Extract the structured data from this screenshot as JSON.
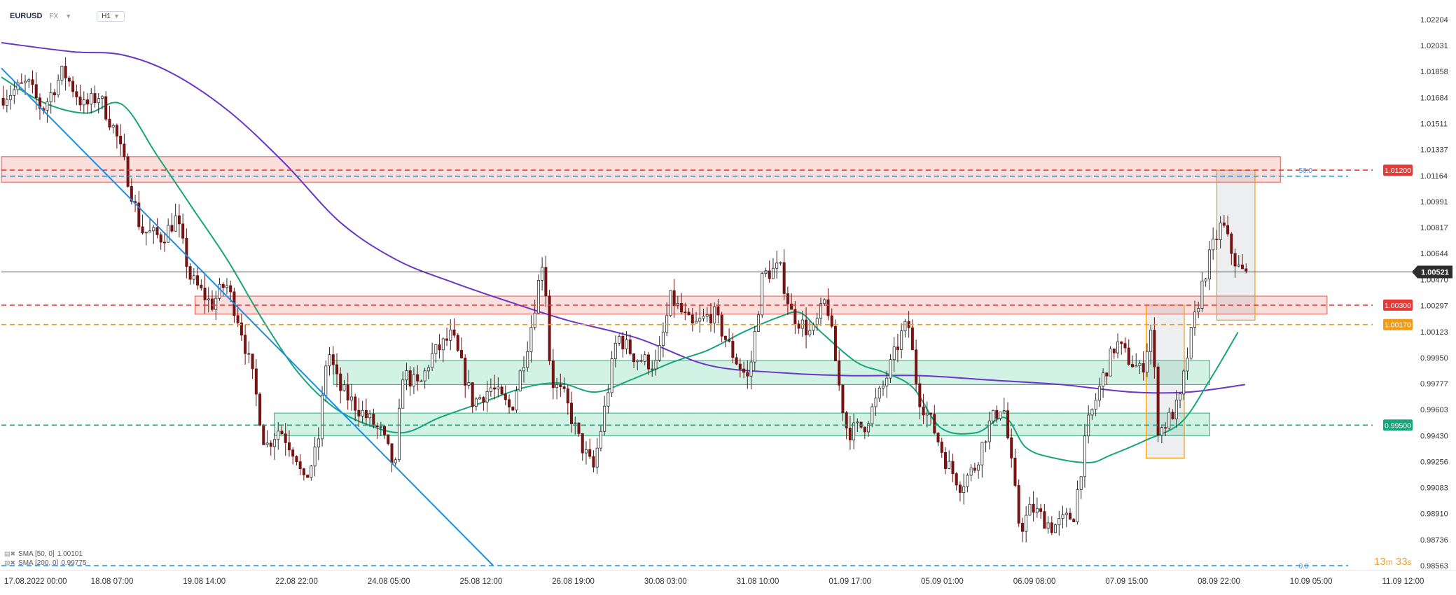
{
  "header": {
    "symbol": "EURUSD",
    "exchange": "FX",
    "timeframe": "H1"
  },
  "indicators": [
    {
      "label": "SMA [50, 0]",
      "value": "1.00101",
      "color": "#16a57a"
    },
    {
      "label": "SMA [200, 0]",
      "value": "0.99775",
      "color": "#6a35c8"
    }
  ],
  "countdown": {
    "minutes": "13",
    "seconds": "33",
    "m": "m",
    "s": "s"
  },
  "chart_data": {
    "type": "candlestick",
    "symbol": "EURUSD",
    "interval": "H1",
    "ylim": [
      0.98563,
      1.02204
    ],
    "y_ticks": [
      "1.02204",
      "1.02031",
      "1.01858",
      "1.01684",
      "1.01511",
      "1.01337",
      "1.01164",
      "1.00991",
      "1.00817",
      "1.00644",
      "1.00470",
      "1.00297",
      "1.00123",
      "0.99950",
      "0.99777",
      "0.99603",
      "0.99430",
      "0.99256",
      "0.99083",
      "0.98910",
      "0.98736",
      "0.98563"
    ],
    "x_ticks": [
      "17.08.2022  00:00",
      "18.08  07:00",
      "19.08  14:00",
      "22.08  22:00",
      "24.08  05:00",
      "25.08  12:00",
      "26.08  19:00",
      "30.08  03:00",
      "31.08  10:00",
      "01.09  17:00",
      "05.09  01:00",
      "06.09  08:00",
      "07.09  15:00",
      "08.09  22:00",
      "10.09  05:00",
      "11.09  12:00"
    ],
    "x_tick_fraction": [
      0.0,
      0.06525,
      0.13053,
      0.19579,
      0.26106,
      0.32632,
      0.39158,
      0.45684,
      0.5221,
      0.58737,
      0.65263,
      0.71789,
      0.78316,
      0.84842,
      0.91368,
      0.97895
    ],
    "candle_path": [
      [
        0.0,
        1.0168
      ],
      [
        0.02,
        1.0178
      ],
      [
        0.03,
        1.016
      ],
      [
        0.045,
        1.0186
      ],
      [
        0.06,
        1.0162
      ],
      [
        0.07,
        1.017
      ],
      [
        0.082,
        1.0145
      ],
      [
        0.09,
        1.0118
      ],
      [
        0.1,
        1.008
      ],
      [
        0.115,
        1.0075
      ],
      [
        0.125,
        1.0088
      ],
      [
        0.135,
        1.0048
      ],
      [
        0.15,
        1.003
      ],
      [
        0.16,
        1.0045
      ],
      [
        0.17,
        1.0018
      ],
      [
        0.18,
        0.9978
      ],
      [
        0.188,
        0.9935
      ],
      [
        0.198,
        0.9948
      ],
      [
        0.21,
        0.993
      ],
      [
        0.215,
        0.991
      ],
      [
        0.225,
        0.9935
      ],
      [
        0.232,
        1.0002
      ],
      [
        0.24,
        0.9975
      ],
      [
        0.255,
        0.996
      ],
      [
        0.27,
        0.9945
      ],
      [
        0.28,
        0.992
      ],
      [
        0.285,
        0.9985
      ],
      [
        0.297,
        0.9975
      ],
      [
        0.305,
        0.9995
      ],
      [
        0.32,
        1.001
      ],
      [
        0.335,
        0.9965
      ],
      [
        0.348,
        0.9975
      ],
      [
        0.362,
        0.996
      ],
      [
        0.375,
        1.001
      ],
      [
        0.385,
        1.0065
      ],
      [
        0.39,
        0.998
      ],
      [
        0.4,
        0.9968
      ],
      [
        0.41,
        0.994
      ],
      [
        0.42,
        0.992
      ],
      [
        0.428,
        0.996
      ],
      [
        0.437,
        1.001
      ],
      [
        0.45,
        0.9995
      ],
      [
        0.465,
        0.999
      ],
      [
        0.475,
        1.0035
      ],
      [
        0.49,
        1.0015
      ],
      [
        0.505,
        1.0025
      ],
      [
        0.52,
        0.9995
      ],
      [
        0.53,
        0.998
      ],
      [
        0.54,
        1.005
      ],
      [
        0.552,
        1.0055
      ],
      [
        0.56,
        1.0025
      ],
      [
        0.575,
        1.001
      ],
      [
        0.585,
        1.0035
      ],
      [
        0.595,
        0.997
      ],
      [
        0.6,
        0.9945
      ],
      [
        0.612,
        0.995
      ],
      [
        0.625,
        0.9975
      ],
      [
        0.638,
        1.001
      ],
      [
        0.643,
        1.0018
      ],
      [
        0.65,
        0.997
      ],
      [
        0.66,
        0.995
      ],
      [
        0.67,
        0.9925
      ],
      [
        0.68,
        0.991
      ],
      [
        0.69,
        0.9922
      ],
      [
        0.7,
        0.995
      ],
      [
        0.71,
        0.9965
      ],
      [
        0.715,
        0.993
      ],
      [
        0.722,
        0.988
      ],
      [
        0.73,
        0.9895
      ],
      [
        0.745,
        0.9882
      ],
      [
        0.76,
        0.989
      ],
      [
        0.77,
        0.995
      ],
      [
        0.78,
        0.998
      ],
      [
        0.79,
        1.0005
      ],
      [
        0.798,
        0.9995
      ],
      [
        0.808,
        0.9985
      ],
      [
        0.815,
        1.0015
      ],
      [
        0.82,
        0.9945
      ],
      [
        0.828,
        0.9955
      ],
      [
        0.835,
        0.9965
      ],
      [
        0.842,
        1.0005
      ],
      [
        0.85,
        1.004
      ],
      [
        0.857,
        1.0065
      ],
      [
        0.865,
        1.0085
      ],
      [
        0.87,
        1.007
      ],
      [
        0.876,
        1.0055
      ],
      [
        0.882,
        1.005
      ]
    ],
    "sma200_path": [
      [
        0.0,
        1.0205
      ],
      [
        0.05,
        1.0199
      ],
      [
        0.085,
        1.0197
      ],
      [
        0.12,
        1.0185
      ],
      [
        0.16,
        1.016
      ],
      [
        0.2,
        1.0125
      ],
      [
        0.24,
        1.0085
      ],
      [
        0.28,
        1.006
      ],
      [
        0.32,
        1.0045
      ],
      [
        0.36,
        1.0032
      ],
      [
        0.4,
        1.002
      ],
      [
        0.45,
        1.0008
      ],
      [
        0.5,
        0.999
      ],
      [
        0.55,
        0.9985
      ],
      [
        0.6,
        0.9983
      ],
      [
        0.65,
        0.9983
      ],
      [
        0.7,
        0.998
      ],
      [
        0.75,
        0.9977
      ],
      [
        0.8,
        0.9972
      ],
      [
        0.84,
        0.9972
      ],
      [
        0.88,
        0.9977
      ]
    ],
    "sma50_path": [
      [
        0.0,
        1.0182
      ],
      [
        0.03,
        1.0165
      ],
      [
        0.06,
        1.0158
      ],
      [
        0.085,
        1.0164
      ],
      [
        0.11,
        1.013
      ],
      [
        0.135,
        1.0095
      ],
      [
        0.16,
        1.006
      ],
      [
        0.185,
        1.002
      ],
      [
        0.21,
        0.9985
      ],
      [
        0.235,
        0.9962
      ],
      [
        0.26,
        0.995
      ],
      [
        0.285,
        0.9945
      ],
      [
        0.31,
        0.9955
      ],
      [
        0.34,
        0.9965
      ],
      [
        0.37,
        0.9975
      ],
      [
        0.395,
        0.9978
      ],
      [
        0.42,
        0.9972
      ],
      [
        0.445,
        0.998
      ],
      [
        0.475,
        0.9992
      ],
      [
        0.5,
        1.0
      ],
      [
        0.525,
        1.0012
      ],
      [
        0.55,
        1.0022
      ],
      [
        0.565,
        1.0025
      ],
      [
        0.58,
        1.0012
      ],
      [
        0.605,
        0.9992
      ],
      [
        0.625,
        0.9985
      ],
      [
        0.645,
        0.9975
      ],
      [
        0.665,
        0.9948
      ],
      [
        0.69,
        0.9945
      ],
      [
        0.71,
        0.9955
      ],
      [
        0.725,
        0.9935
      ],
      [
        0.745,
        0.9928
      ],
      [
        0.77,
        0.9925
      ],
      [
        0.785,
        0.993
      ],
      [
        0.81,
        0.994
      ],
      [
        0.835,
        0.9952
      ],
      [
        0.855,
        0.998
      ],
      [
        0.875,
        1.0012
      ]
    ],
    "trendline": {
      "from": [
        0.0,
        1.0188
      ],
      "to": [
        0.348,
        0.98563
      ],
      "color": "#1a8fe8"
    },
    "horizontal_levels": [
      {
        "value": 1.012,
        "label": "1.01200",
        "color": "#e53935",
        "style": "dashed"
      },
      {
        "value": 1.003,
        "label": "1.00300",
        "color": "#e53935",
        "style": "dashed"
      },
      {
        "value": 1.0017,
        "label": "1.00170",
        "color": "#f39c12",
        "style": "dashed"
      },
      {
        "value": 0.995,
        "label": "0.99500",
        "color": "#16a57a",
        "style": "dashed"
      },
      {
        "value": 1.0116,
        "label": "",
        "color": "#1a8fe8",
        "style": "dashed"
      },
      {
        "value": 0.98563,
        "label": "",
        "color": "#1a8fe8",
        "style": "dashed"
      }
    ],
    "current_price": {
      "value": 1.00521,
      "label": "1.00521"
    },
    "zones": [
      {
        "x0": 0.0,
        "x1": 0.905,
        "y0": 1.0112,
        "y1": 1.0129,
        "kind": "resistance"
      },
      {
        "x0": 0.137,
        "x1": 0.938,
        "y0": 1.0024,
        "y1": 1.0036,
        "kind": "resistance"
      },
      {
        "x0": 0.235,
        "x1": 0.855,
        "y0": 0.9977,
        "y1": 0.9993,
        "kind": "support"
      },
      {
        "x0": 0.193,
        "x1": 0.855,
        "y0": 0.9943,
        "y1": 0.9958,
        "kind": "support"
      }
    ],
    "boxes": [
      {
        "x0": 0.81,
        "x1": 0.837,
        "y0": 0.9928,
        "y1": 1.003
      },
      {
        "x0": 0.86,
        "x1": 0.887,
        "y0": 1.002,
        "y1": 1.012
      }
    ],
    "fib_labels": [
      {
        "text": "50.0",
        "at": [
          0.918,
          1.012
        ]
      },
      {
        "text": "0.0",
        "at": [
          0.918,
          0.98563
        ]
      }
    ]
  }
}
